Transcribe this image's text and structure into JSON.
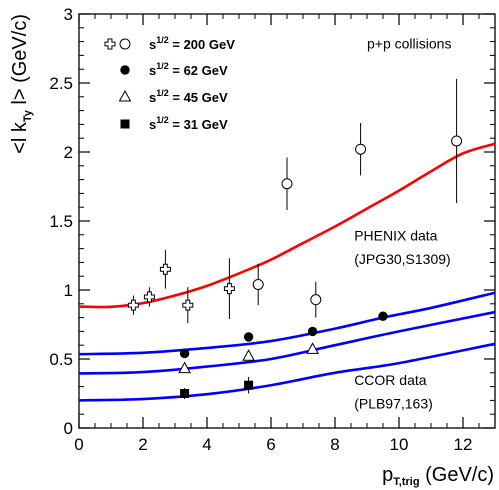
{
  "chart_data": {
    "type": "scatter",
    "title": "",
    "xlabel": {
      "base": "p",
      "sub": "T,trig",
      "unit": " (GeV/c)"
    },
    "ylabel": {
      "pre": "<l k",
      "sub": "Ty",
      "post": " l> (GeV/c)"
    },
    "xlim": [
      0,
      13
    ],
    "ylim": [
      0,
      3
    ],
    "x_ticks": [
      0,
      2,
      4,
      6,
      8,
      10,
      12
    ],
    "x_tick_labels": [
      "0",
      "2",
      "4",
      "6",
      "8",
      "10",
      "12"
    ],
    "y_ticks": [
      0,
      0.5,
      1,
      1.5,
      2,
      2.5,
      3
    ],
    "y_tick_labels": [
      "0",
      "0.5",
      "1",
      "1.5",
      "2",
      "2.5",
      "3"
    ],
    "grid": false,
    "legend": {
      "placement": "top-left",
      "entries": [
        {
          "markers": [
            "open-cross",
            "open-circle"
          ],
          "label_pre": "s",
          "label_sup": "1/2",
          "label_post": " = 200 GeV"
        },
        {
          "markers": [
            "filled-circle"
          ],
          "label_pre": "s",
          "label_sup": "1/2",
          "label_post": " = 62 GeV"
        },
        {
          "markers": [
            "open-triangle"
          ],
          "label_pre": "s",
          "label_sup": "1/2",
          "label_post": " = 45 GeV"
        },
        {
          "markers": [
            "filled-square"
          ],
          "label_pre": "s",
          "label_sup": "1/2",
          "label_post": " = 31 GeV"
        }
      ]
    },
    "series": [
      {
        "marker": "open-cross",
        "points": [
          {
            "x": 1.7,
            "y": 0.89,
            "err": 0.07
          },
          {
            "x": 2.2,
            "y": 0.95,
            "err": 0.07
          },
          {
            "x": 2.7,
            "y": 1.15,
            "err": 0.14
          },
          {
            "x": 3.4,
            "y": 0.89,
            "err": 0.13
          },
          {
            "x": 4.7,
            "y": 1.01,
            "err": 0.22
          }
        ]
      },
      {
        "marker": "open-circle",
        "points": [
          {
            "x": 5.6,
            "y": 1.04,
            "err": 0.15
          },
          {
            "x": 6.5,
            "y": 1.77,
            "err": 0.19
          },
          {
            "x": 7.4,
            "y": 0.93,
            "err": 0.13
          },
          {
            "x": 8.8,
            "y": 2.02,
            "err": 0.19
          },
          {
            "x": 11.8,
            "y": 2.08,
            "err": 0.45
          }
        ]
      },
      {
        "marker": "filled-circle",
        "points": [
          {
            "x": 3.3,
            "y": 0.54,
            "err": 0
          },
          {
            "x": 5.3,
            "y": 0.66,
            "err": 0
          },
          {
            "x": 7.3,
            "y": 0.7,
            "err": 0
          },
          {
            "x": 9.5,
            "y": 0.81,
            "err": 0
          }
        ]
      },
      {
        "marker": "open-triangle",
        "points": [
          {
            "x": 3.3,
            "y": 0.43,
            "err": 0
          },
          {
            "x": 5.3,
            "y": 0.52,
            "err": 0
          },
          {
            "x": 7.3,
            "y": 0.57,
            "err": 0
          }
        ]
      },
      {
        "marker": "filled-square",
        "points": [
          {
            "x": 3.3,
            "y": 0.25,
            "err": 0.04
          },
          {
            "x": 5.3,
            "y": 0.31,
            "err": 0.06
          }
        ]
      }
    ],
    "curves": [
      {
        "color": "#ff0000",
        "points": [
          [
            0,
            0.88
          ],
          [
            1,
            0.878
          ],
          [
            2,
            0.905
          ],
          [
            3,
            0.96
          ],
          [
            4,
            1.03
          ],
          [
            5,
            1.12
          ],
          [
            6,
            1.22
          ],
          [
            7,
            1.34
          ],
          [
            8,
            1.46
          ],
          [
            9,
            1.59
          ],
          [
            10,
            1.72
          ],
          [
            11,
            1.86
          ],
          [
            12,
            1.99
          ],
          [
            13,
            2.06
          ]
        ]
      },
      {
        "color": "#0000ff",
        "points": [
          [
            0,
            0.535
          ],
          [
            2,
            0.545
          ],
          [
            4,
            0.58
          ],
          [
            6,
            0.63
          ],
          [
            8,
            0.72
          ],
          [
            9.5,
            0.8
          ],
          [
            11,
            0.87
          ],
          [
            13,
            0.98
          ]
        ]
      },
      {
        "color": "#0000ff",
        "points": [
          [
            0,
            0.395
          ],
          [
            2,
            0.405
          ],
          [
            4,
            0.445
          ],
          [
            6,
            0.5
          ],
          [
            8,
            0.6
          ],
          [
            10,
            0.7
          ],
          [
            13,
            0.84
          ]
        ]
      },
      {
        "color": "#0000ff",
        "points": [
          [
            0,
            0.2
          ],
          [
            2,
            0.21
          ],
          [
            4,
            0.245
          ],
          [
            6,
            0.31
          ],
          [
            8,
            0.4
          ],
          [
            10,
            0.47
          ],
          [
            13,
            0.61
          ]
        ]
      }
    ],
    "annotations": [
      {
        "text": "p+p collisions",
        "x": 9.0,
        "y": 2.75
      },
      {
        "text": "PHENIX data",
        "x": 8.6,
        "y": 1.36
      },
      {
        "text": "(JPG30,S1309)",
        "x": 8.6,
        "y": 1.19
      },
      {
        "text": "CCOR data",
        "x": 8.6,
        "y": 0.31
      },
      {
        "text": "(PLB97,163)",
        "x": 8.6,
        "y": 0.14
      }
    ]
  }
}
